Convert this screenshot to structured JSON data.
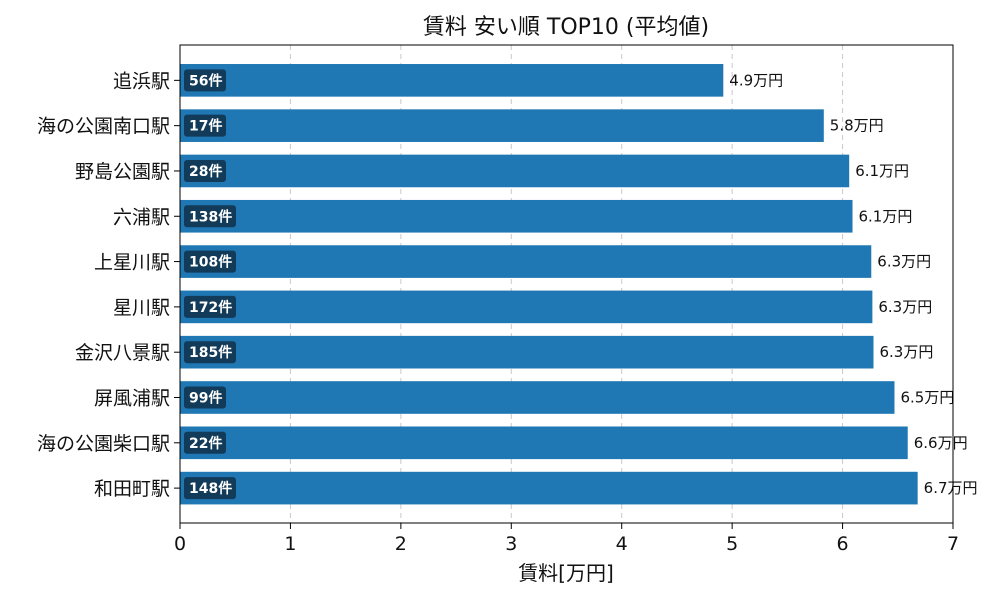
{
  "chart_data": {
    "type": "bar",
    "orientation": "horizontal",
    "title": "賃料 安い順 TOP10 (平均値)",
    "xlabel": "賃料[万円]",
    "ylabel": "",
    "xlim": [
      0,
      7
    ],
    "xticks": [
      "0",
      "1",
      "2",
      "3",
      "4",
      "5",
      "6",
      "7"
    ],
    "grid": "x dashed",
    "categories": [
      "追浜駅",
      "海の公園南口駅",
      "野島公園駅",
      "六浦駅",
      "上星川駅",
      "星川駅",
      "金沢八景駅",
      "屏風浦駅",
      "海の公園柴口駅",
      "和田町駅"
    ],
    "values": [
      4.92,
      5.83,
      6.06,
      6.09,
      6.26,
      6.27,
      6.28,
      6.47,
      6.59,
      6.68
    ],
    "value_labels": [
      "4.9万円",
      "5.8万円",
      "6.1万円",
      "6.1万円",
      "6.3万円",
      "6.3万円",
      "6.3万円",
      "6.5万円",
      "6.6万円",
      "6.7万円"
    ],
    "counts": [
      "56件",
      "17件",
      "28件",
      "138件",
      "108件",
      "172件",
      "185件",
      "99件",
      "22件",
      "148件"
    ],
    "bar_color": "#1f77b4",
    "badge_color": "#123a59"
  }
}
